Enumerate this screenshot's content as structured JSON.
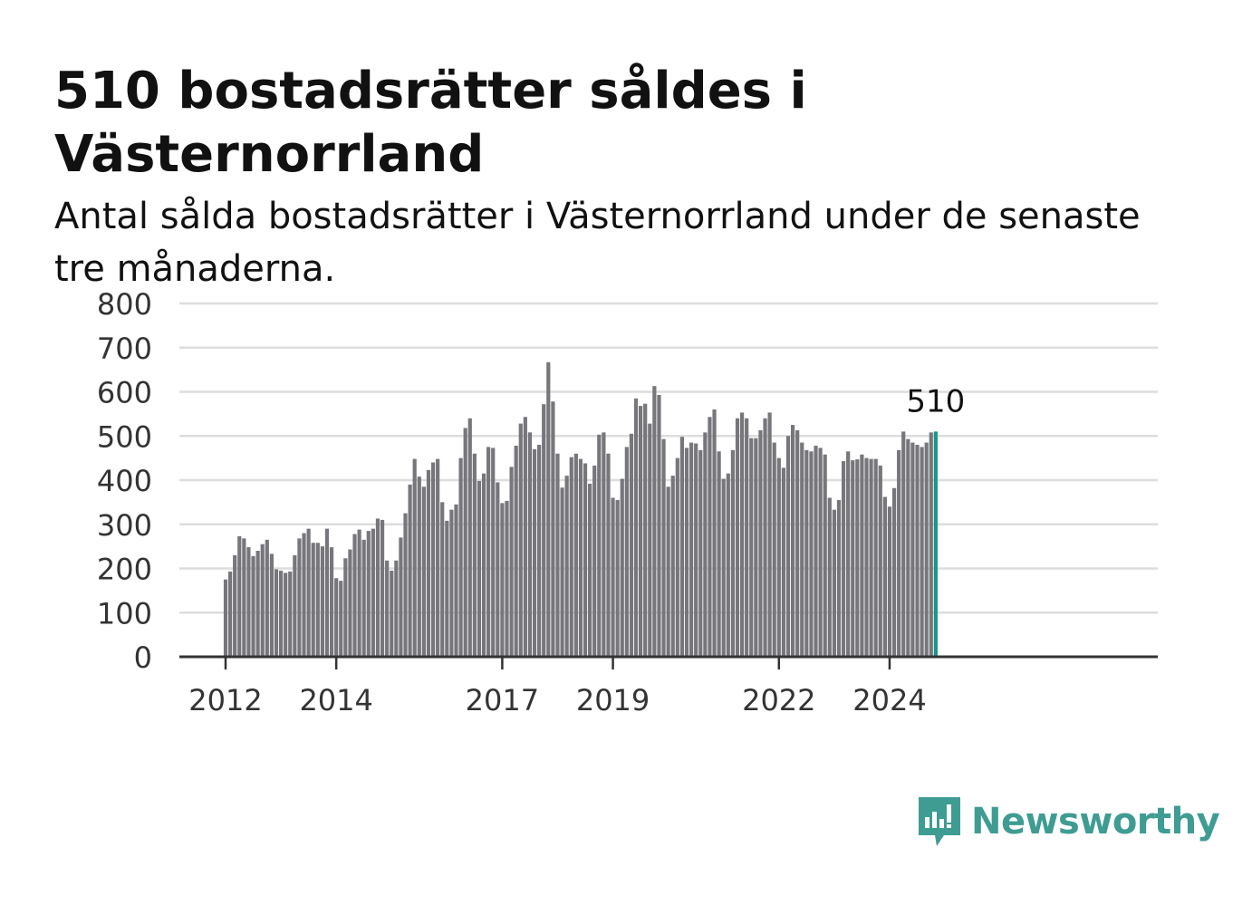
{
  "title": "510 bostadsrätter såldes i Västernorrland",
  "subtitle": "Antal sålda bostadsrätter i Västernorrland under de senaste tre månaderna.",
  "brand": {
    "name": "Newsworthy",
    "icon": "newsworthy-logo-icon",
    "color": "#3e9c92"
  },
  "colors": {
    "bar": "#77767b",
    "highlight": "#18958d",
    "grid": "#dddddd",
    "axis": "#333333"
  },
  "chart_data": {
    "type": "bar",
    "ylim": [
      0,
      800
    ],
    "yticks": [
      "0",
      "100",
      "200",
      "300",
      "400",
      "500",
      "600",
      "700",
      "800"
    ],
    "xtick_labels": [
      {
        "label": "2012",
        "index": 0
      },
      {
        "label": "2014",
        "index": 24
      },
      {
        "label": "2017",
        "index": 60
      },
      {
        "label": "2019",
        "index": 84
      },
      {
        "label": "2022",
        "index": 120
      },
      {
        "label": "2024",
        "index": 144
      }
    ],
    "start": "2012-01",
    "highlight_label": "510",
    "values": [
      175,
      193,
      230,
      273,
      268,
      248,
      228,
      240,
      255,
      265,
      233,
      198,
      195,
      190,
      193,
      230,
      268,
      280,
      290,
      258,
      258,
      250,
      290,
      248,
      178,
      172,
      223,
      243,
      278,
      288,
      265,
      285,
      290,
      313,
      310,
      218,
      195,
      218,
      270,
      325,
      390,
      448,
      408,
      385,
      423,
      440,
      448,
      350,
      308,
      333,
      345,
      450,
      518,
      540,
      460,
      398,
      415,
      475,
      473,
      395,
      348,
      353,
      430,
      478,
      528,
      543,
      508,
      470,
      480,
      572,
      667,
      578,
      460,
      383,
      410,
      452,
      460,
      448,
      438,
      392,
      433,
      503,
      508,
      460,
      360,
      355,
      403,
      475,
      505,
      585,
      568,
      573,
      528,
      613,
      593,
      493,
      385,
      410,
      450,
      498,
      473,
      485,
      483,
      468,
      508,
      543,
      560,
      465,
      403,
      415,
      468,
      540,
      553,
      540,
      495,
      495,
      513,
      540,
      553,
      485,
      450,
      428,
      500,
      525,
      513,
      485,
      468,
      465,
      478,
      473,
      458,
      360,
      333,
      355,
      443,
      465,
      445,
      447,
      458,
      450,
      448,
      448,
      433,
      362,
      340,
      382,
      468,
      510,
      493,
      485,
      480,
      475,
      485,
      508,
      510
    ]
  }
}
